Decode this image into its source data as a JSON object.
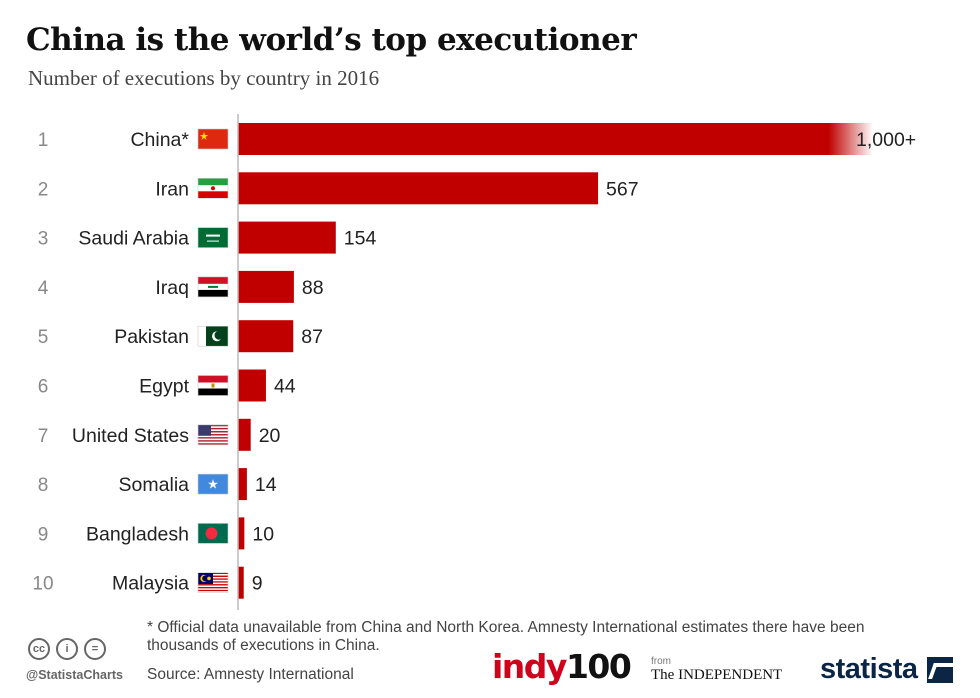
{
  "header": {
    "title": "China is the world’s top executioner",
    "subtitle": "Number of executions by country in 2016"
  },
  "chart_data": {
    "type": "bar",
    "orientation": "horizontal",
    "categories": [
      "China*",
      "Iran",
      "Saudi Arabia",
      "Iraq",
      "Pakistan",
      "Egypt",
      "United States",
      "Somalia",
      "Bangladesh",
      "Malaysia"
    ],
    "ranks": [
      "1",
      "2",
      "3",
      "4",
      "5",
      "6",
      "7",
      "8",
      "9",
      "10"
    ],
    "values": [
      1000,
      567,
      154,
      88,
      87,
      44,
      20,
      14,
      10,
      9
    ],
    "value_labels": [
      "1,000+",
      "567",
      "154",
      "88",
      "87",
      "44",
      "20",
      "14",
      "10",
      "9"
    ],
    "bar_color": "#c00000",
    "xlim": [
      0,
      1000
    ],
    "grid": false
  },
  "flags": [
    "china-flag-icon",
    "iran-flag-icon",
    "saudi-arabia-flag-icon",
    "iraq-flag-icon",
    "pakistan-flag-icon",
    "egypt-flag-icon",
    "united-states-flag-icon",
    "somalia-flag-icon",
    "bangladesh-flag-icon",
    "malaysia-flag-icon"
  ],
  "footer": {
    "footnote": "* Official data unavailable from China and North Korea. Amnesty International estimates there have been thousands of executions in China.",
    "source": "Source: Amnesty International",
    "handle": "@StatistaCharts",
    "cc_icons": [
      "cc",
      "i",
      "="
    ],
    "logo_indy_part1": "indy",
    "logo_indy_part2": "100",
    "logo_from": "from",
    "logo_independent": "The INDEPENDENT",
    "logo_statista": "statista"
  }
}
